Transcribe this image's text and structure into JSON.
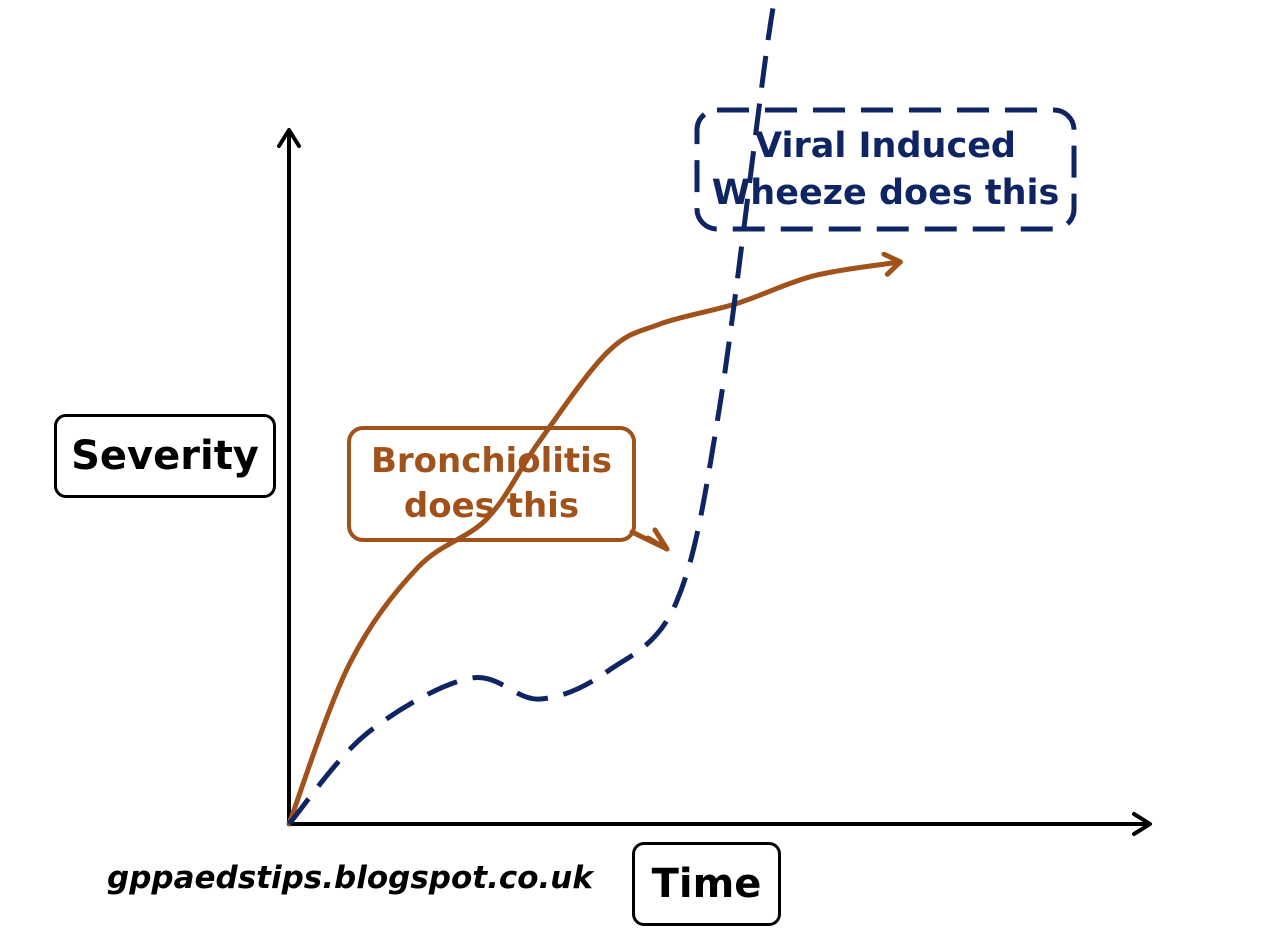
{
  "chart_data": {
    "type": "line",
    "xlabel": "Time",
    "ylabel": "Severity",
    "series": [
      {
        "name": "Bronchiolitis does this",
        "color": "#a0521a",
        "style": "solid",
        "points": [
          [
            0,
            0
          ],
          [
            0.07,
            0.23
          ],
          [
            0.15,
            0.37
          ],
          [
            0.23,
            0.44
          ],
          [
            0.29,
            0.55
          ],
          [
            0.37,
            0.68
          ],
          [
            0.43,
            0.72
          ],
          [
            0.52,
            0.75
          ],
          [
            0.61,
            0.79
          ],
          [
            0.71,
            0.81
          ]
        ]
      },
      {
        "name": "Viral Induced Wheeze does this",
        "color": "#0f2463",
        "style": "dashed",
        "points": [
          [
            0,
            0
          ],
          [
            0.09,
            0.13
          ],
          [
            0.21,
            0.21
          ],
          [
            0.29,
            0.18
          ],
          [
            0.37,
            0.22
          ],
          [
            0.45,
            0.32
          ],
          [
            0.5,
            0.6
          ],
          [
            0.56,
            1.16
          ],
          [
            0.58,
            1.22
          ]
        ]
      }
    ],
    "annotations": [
      {
        "text": "Bronchiolitis does this",
        "color": "#a0521a"
      },
      {
        "text": "Viral Induced Wheeze does this",
        "color": "#0f2463"
      }
    ],
    "grid": false
  },
  "labels": {
    "ylabel": "Severity",
    "xlabel": "Time",
    "bronch_line1": "Bronchiolitis",
    "bronch_line2": "does this",
    "viral_line1": "Viral Induced",
    "viral_line2": "Wheeze does this",
    "source": "gppaedstips.blogspot.co.uk"
  }
}
